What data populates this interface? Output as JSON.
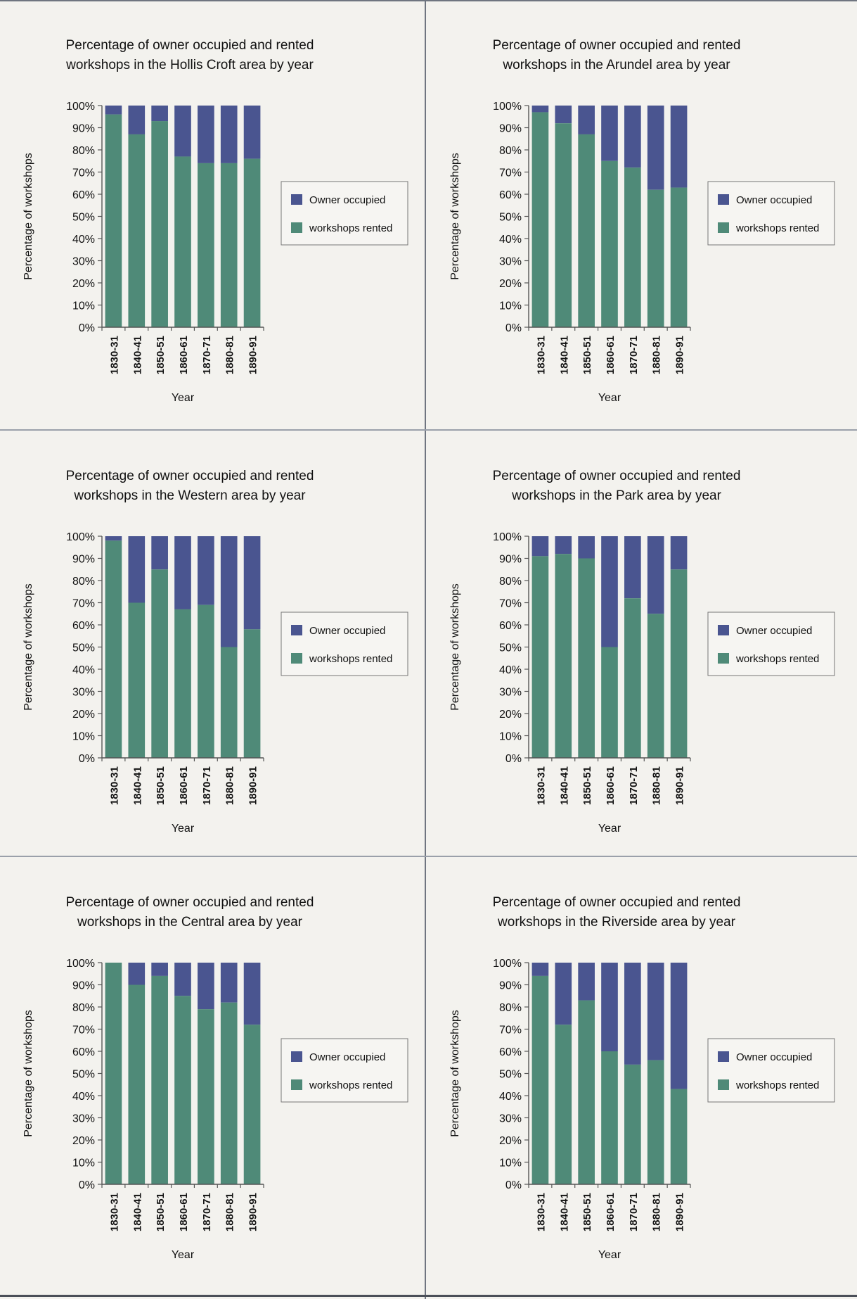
{
  "colors": {
    "owner": "#4a5590",
    "rented": "#4f8a78",
    "axis": "#555555",
    "text": "#111111"
  },
  "legend": {
    "owner_label": "Owner occupied",
    "rented_label": "workshops rented"
  },
  "chart_data": [
    {
      "type": "bar",
      "stacked": true,
      "title": "Percentage of owner occupied and rented workshops in the Hollis Croft area by year",
      "title_lines": [
        "Percentage of owner occupied and rented",
        "workshops in the Hollis Croft area by year"
      ],
      "xlabel": "Year",
      "ylabel": "Percentage of workshops",
      "ylim": [
        0,
        100
      ],
      "yticks": [
        "0%",
        "10%",
        "20%",
        "30%",
        "40%",
        "50%",
        "60%",
        "70%",
        "80%",
        "90%",
        "100%"
      ],
      "categories": [
        "1830-31",
        "1840-41",
        "1850-51",
        "1860-61",
        "1870-71",
        "1880-81",
        "1890-91"
      ],
      "series": [
        {
          "name": "workshops rented",
          "values": [
            96,
            87,
            93,
            77,
            74,
            74,
            76
          ]
        },
        {
          "name": "Owner occupied",
          "values": [
            4,
            13,
            7,
            23,
            26,
            26,
            24
          ]
        }
      ],
      "legend_position": "right"
    },
    {
      "type": "bar",
      "stacked": true,
      "title": "Percentage of owner occupied and rented workshops in the Arundel area by year",
      "title_lines": [
        "Percentage of owner occupied and rented",
        "workshops in the Arundel area by year"
      ],
      "xlabel": "Year",
      "ylabel": "Percentage of workshops",
      "ylim": [
        0,
        100
      ],
      "yticks": [
        "0%",
        "10%",
        "20%",
        "30%",
        "40%",
        "50%",
        "60%",
        "70%",
        "80%",
        "90%",
        "100%"
      ],
      "categories": [
        "1830-31",
        "1840-41",
        "1850-51",
        "1860-61",
        "1870-71",
        "1880-81",
        "1890-91"
      ],
      "series": [
        {
          "name": "workshops rented",
          "values": [
            97,
            92,
            87,
            75,
            72,
            62,
            63
          ]
        },
        {
          "name": "Owner occupied",
          "values": [
            3,
            8,
            13,
            25,
            28,
            38,
            37
          ]
        }
      ],
      "legend_position": "right"
    },
    {
      "type": "bar",
      "stacked": true,
      "title": "Percentage of owner occupied and rented workshops in the Western area by year",
      "title_lines": [
        "Percentage of owner occupied and rented",
        "workshops in the Western area by year"
      ],
      "xlabel": "Year",
      "ylabel": "Percentage of workshops",
      "ylim": [
        0,
        100
      ],
      "yticks": [
        "0%",
        "10%",
        "20%",
        "30%",
        "40%",
        "50%",
        "60%",
        "70%",
        "80%",
        "90%",
        "100%"
      ],
      "categories": [
        "1830-31",
        "1840-41",
        "1850-51",
        "1860-61",
        "1870-71",
        "1880-81",
        "1890-91"
      ],
      "series": [
        {
          "name": "workshops rented",
          "values": [
            98,
            70,
            85,
            67,
            69,
            50,
            58
          ]
        },
        {
          "name": "Owner occupied",
          "values": [
            2,
            30,
            15,
            33,
            31,
            50,
            42
          ]
        }
      ],
      "legend_position": "right"
    },
    {
      "type": "bar",
      "stacked": true,
      "title": "Percentage of owner occupied and rented workshops in the Park area by year",
      "title_lines": [
        "Percentage of owner occupied and rented",
        "workshops in the Park area by year"
      ],
      "xlabel": "Year",
      "ylabel": "Percentage of workshops",
      "ylim": [
        0,
        100
      ],
      "yticks": [
        "0%",
        "10%",
        "20%",
        "30%",
        "40%",
        "50%",
        "60%",
        "70%",
        "80%",
        "90%",
        "100%"
      ],
      "categories": [
        "1830-31",
        "1840-41",
        "1850-51",
        "1860-61",
        "1870-71",
        "1880-81",
        "1890-91"
      ],
      "series": [
        {
          "name": "workshops rented",
          "values": [
            91,
            92,
            90,
            50,
            72,
            65,
            85
          ]
        },
        {
          "name": "Owner occupied",
          "values": [
            9,
            8,
            10,
            50,
            28,
            35,
            15
          ]
        }
      ],
      "legend_position": "right"
    },
    {
      "type": "bar",
      "stacked": true,
      "title": "Percentage of owner occupied and rented workshops in the Central area by year",
      "title_lines": [
        "Percentage of owner occupied and rented",
        "workshops in the Central area by year"
      ],
      "xlabel": "Year",
      "ylabel": "Percentage of workshops",
      "ylim": [
        0,
        100
      ],
      "yticks": [
        "0%",
        "10%",
        "20%",
        "30%",
        "40%",
        "50%",
        "60%",
        "70%",
        "80%",
        "90%",
        "100%"
      ],
      "categories": [
        "1830-31",
        "1840-41",
        "1850-51",
        "1860-61",
        "1870-71",
        "1880-81",
        "1890-91"
      ],
      "series": [
        {
          "name": "workshops rented",
          "values": [
            100,
            90,
            94,
            85,
            79,
            82,
            72
          ]
        },
        {
          "name": "Owner occupied",
          "values": [
            0,
            10,
            6,
            15,
            21,
            18,
            28
          ]
        }
      ],
      "legend_position": "right"
    },
    {
      "type": "bar",
      "stacked": true,
      "title": "Percentage of owner occupied and rented workshops in the Riverside area by year",
      "title_lines": [
        "Percentage of owner occupied and rented",
        "workshops in the Riverside area by year"
      ],
      "xlabel": "Year",
      "ylabel": "Percentage of workshops",
      "ylim": [
        0,
        100
      ],
      "yticks": [
        "0%",
        "10%",
        "20%",
        "30%",
        "40%",
        "50%",
        "60%",
        "70%",
        "80%",
        "90%",
        "100%"
      ],
      "categories": [
        "1830-31",
        "1840-41",
        "1850-51",
        "1860-61",
        "1870-71",
        "1880-81",
        "1890-91"
      ],
      "series": [
        {
          "name": "workshops rented",
          "values": [
            94,
            72,
            83,
            60,
            54,
            56,
            43
          ]
        },
        {
          "name": "Owner occupied",
          "values": [
            6,
            28,
            17,
            40,
            46,
            44,
            57
          ]
        }
      ],
      "legend_position": "right"
    }
  ]
}
